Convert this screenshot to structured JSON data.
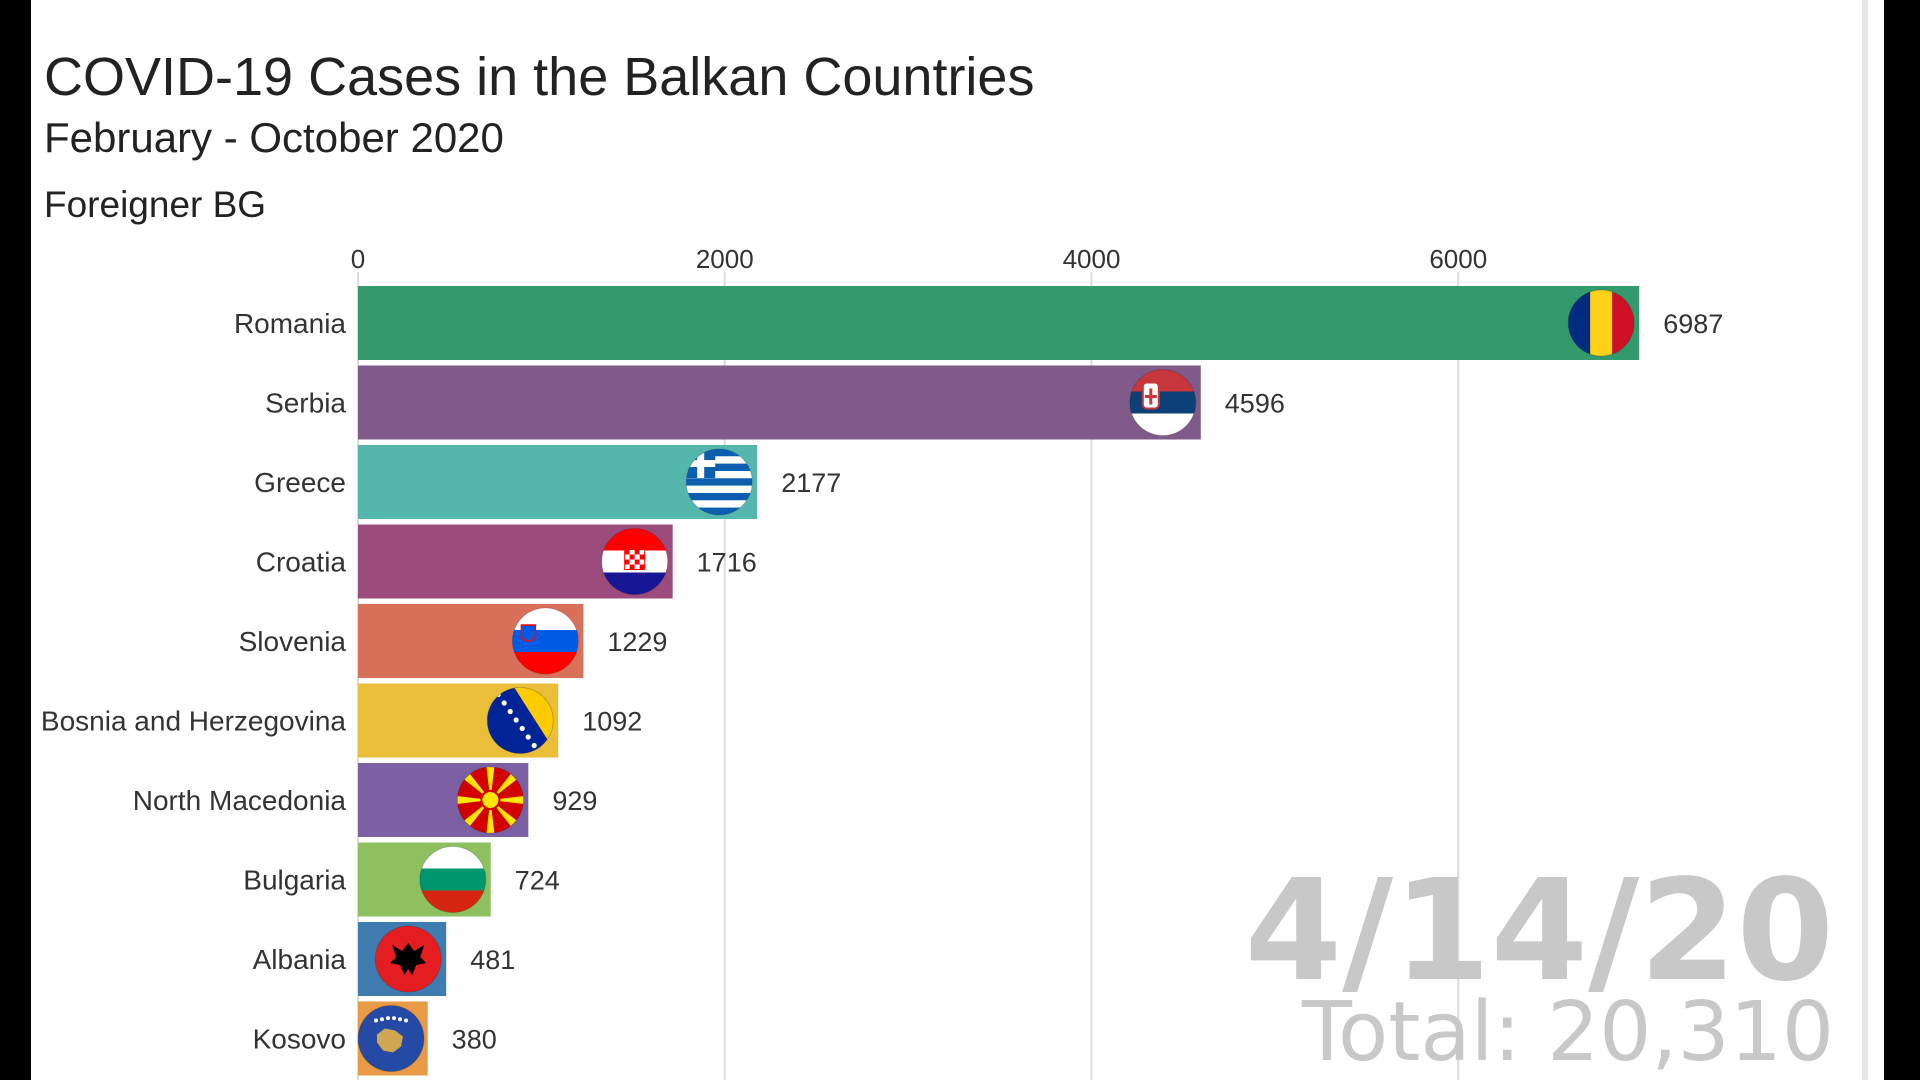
{
  "header": {
    "title": "COVID-19 Cases in the Balkan Countries",
    "subtitle": "February - October 2020",
    "caption": "Foreigner BG"
  },
  "overlay": {
    "date": "4/14/20",
    "total": "Total: 20,310"
  },
  "chart_data": {
    "type": "bar",
    "orientation": "horizontal",
    "title": "COVID-19 Cases in the Balkan Countries",
    "subtitle": "February - October 2020",
    "categories": [
      "Romania",
      "Serbia",
      "Greece",
      "Croatia",
      "Slovenia",
      "Bosnia and Herzegovina",
      "North Macedonia",
      "Bulgaria",
      "Albania",
      "Kosovo"
    ],
    "values": [
      6987,
      4596,
      2177,
      1716,
      1229,
      1092,
      929,
      724,
      481,
      380
    ],
    "value_labels": [
      "6987",
      "4596",
      "2177",
      "1716",
      "1229",
      "1092",
      "929",
      "724",
      "481",
      "380"
    ],
    "colors": [
      "#339a6e",
      "#805a88",
      "#55b6ad",
      "#9c4c7c",
      "#d9705a",
      "#eabe39",
      "#7a60a2",
      "#8ec060",
      "#3f7cb0",
      "#e89a44"
    ],
    "flag_icons": [
      "romania-flag-icon",
      "serbia-flag-icon",
      "greece-flag-icon",
      "croatia-flag-icon",
      "slovenia-flag-icon",
      "bosnia-flag-icon",
      "north-macedonia-flag-icon",
      "bulgaria-flag-icon",
      "albania-flag-icon",
      "kosovo-flag-icon"
    ],
    "x_ticks": [
      0,
      2000,
      4000,
      6000
    ],
    "x_tick_labels": [
      "0",
      "2000",
      "4000",
      "6000"
    ],
    "xlim": [
      0,
      8300
    ],
    "axis_position": "top",
    "grid": true,
    "legend": "none"
  }
}
